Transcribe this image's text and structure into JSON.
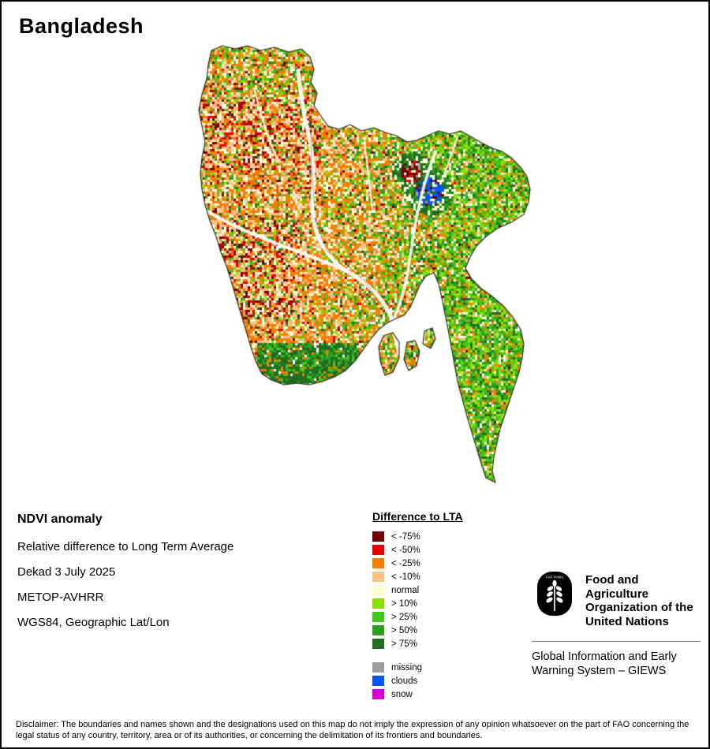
{
  "title": "Bangladesh",
  "info": {
    "heading": "NDVI anomaly",
    "lines": [
      "Relative difference to Long Term Average",
      "Dekad 3 July 2025",
      "METOP-AVHRR",
      "WGS84, Geographic Lat/Lon"
    ]
  },
  "legend": {
    "title": "Difference to LTA",
    "items": [
      {
        "label": "< -75%",
        "color": "#730000"
      },
      {
        "label": "< -50%",
        "color": "#e60000"
      },
      {
        "label": "< -25%",
        "color": "#f57d00"
      },
      {
        "label": "< -10%",
        "color": "#ffc08a"
      },
      {
        "label": "normal",
        "color": "#ffffd0"
      },
      {
        "label": "> 10%",
        "color": "#8ce000"
      },
      {
        "label": "> 25%",
        "color": "#43c61e"
      },
      {
        "label": "> 50%",
        "color": "#2f9e1e"
      },
      {
        "label": "> 75%",
        "color": "#226d22"
      }
    ],
    "extra_items": [
      {
        "label": "missing",
        "color": "#9e9e9e"
      },
      {
        "label": "clouds",
        "color": "#0055ff"
      },
      {
        "label": "snow",
        "color": "#d400d4"
      }
    ]
  },
  "fao": {
    "logo_motto": "FIAT PANIS",
    "org_lines": [
      "Food and Agriculture",
      "Organization of the",
      "United Nations"
    ],
    "giews_lines": [
      "Global Information and Early",
      "Warning System – GIEWS"
    ]
  },
  "disclaimer": "Disclaimer: The boundaries and names shown and the designations used on this map do not imply the expression of any opinion whatsoever on the part of FAO concerning the legal status of any country, territory, area or of its authorities, or concerning the delimitation of its frontiers and boundaries."
}
